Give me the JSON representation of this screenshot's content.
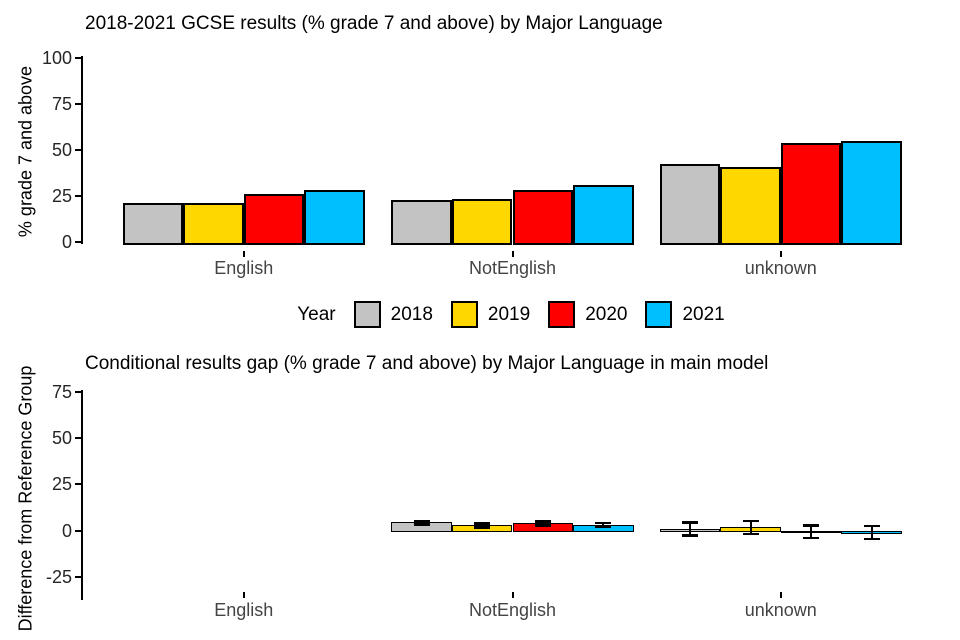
{
  "figure": {
    "background": "#ffffff"
  },
  "legend": {
    "title": "Year",
    "entries": [
      {
        "label": "2018",
        "color": "#C3C3C3"
      },
      {
        "label": "2019",
        "color": "#FFD700"
      },
      {
        "label": "2020",
        "color": "#FF0000"
      },
      {
        "label": "2021",
        "color": "#00BFFF"
      }
    ]
  },
  "chart_data": [
    {
      "type": "bar",
      "title": "2018-2021 GCSE results (% grade 7 and above) by Major Language",
      "ylabel": "% grade 7 and above",
      "xlabel": "",
      "categories": [
        "English",
        "NotEnglish",
        "unknown"
      ],
      "series": [
        {
          "name": "2018",
          "color": "#C3C3C3",
          "values": [
            21,
            23,
            42.5
          ]
        },
        {
          "name": "2019",
          "color": "#FFD700",
          "values": [
            21,
            23.5,
            41
          ]
        },
        {
          "name": "2020",
          "color": "#FF0000",
          "values": [
            26,
            28,
            54
          ]
        },
        {
          "name": "2021",
          "color": "#00BFFF",
          "values": [
            28,
            31,
            55
          ]
        }
      ],
      "yticks": [
        0,
        25,
        50,
        75,
        100
      ],
      "ylim": [
        0,
        100
      ],
      "grid": false,
      "legend_position": "bottom-center"
    },
    {
      "type": "bar",
      "title": "Conditional results gap (% grade 7 and above) by Major Language in main model",
      "ylabel": "Difference from Reference Group",
      "xlabel": "",
      "categories": [
        "English",
        "NotEnglish",
        "unknown"
      ],
      "series": [
        {
          "name": "2018",
          "color": "#C3C3C3",
          "values": [
            null,
            4.5,
            1.2
          ],
          "ci_low": [
            null,
            3.5,
            -2.3
          ],
          "ci_high": [
            null,
            5.5,
            4.7
          ]
        },
        {
          "name": "2019",
          "color": "#FFD700",
          "values": [
            null,
            3.0,
            2.0
          ],
          "ci_low": [
            null,
            2.0,
            -1.5
          ],
          "ci_high": [
            null,
            4.0,
            5.5
          ]
        },
        {
          "name": "2020",
          "color": "#FF0000",
          "values": [
            null,
            4.0,
            -0.4
          ],
          "ci_low": [
            null,
            3.0,
            -3.9
          ],
          "ci_high": [
            null,
            5.0,
            3.1
          ]
        },
        {
          "name": "2021",
          "color": "#00BFFF",
          "values": [
            null,
            3.3,
            -0.8
          ],
          "ci_low": [
            null,
            2.3,
            -4.4
          ],
          "ci_high": [
            null,
            4.3,
            2.8
          ]
        }
      ],
      "yticks": [
        -25,
        0,
        25,
        50,
        75
      ],
      "ylim": [
        -35,
        75
      ],
      "grid": false,
      "note": "English is the reference group (no bars drawn)"
    }
  ]
}
